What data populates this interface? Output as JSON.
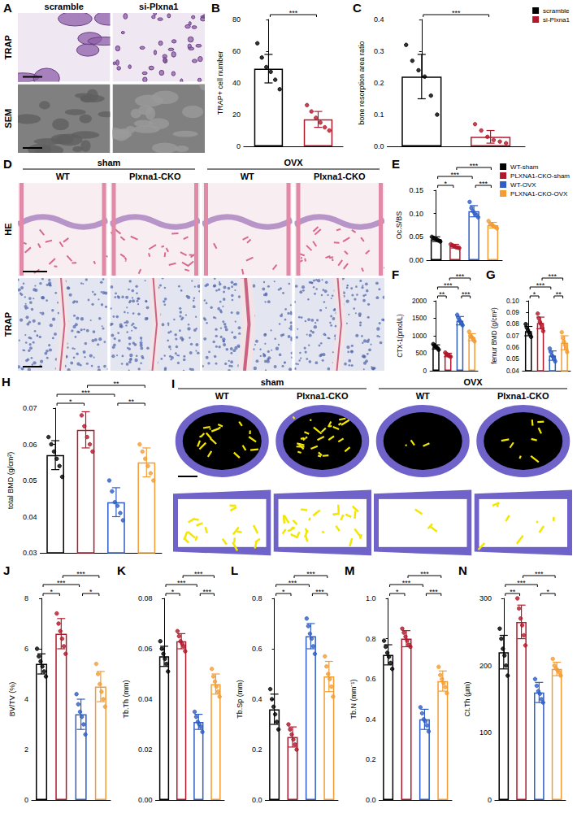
{
  "images": [
    {
      "panel": "A",
      "columns": [
        "scramble",
        "si-Plxna1"
      ],
      "rows": [
        "TRAP",
        "SEM"
      ]
    },
    {
      "panel": "D",
      "groups": [
        "sham",
        "OVX"
      ],
      "columns": [
        "WT",
        "Plxna1-CKO",
        "WT",
        "Plxna1-CKO"
      ],
      "rows": [
        "HE",
        "TRAP"
      ]
    },
    {
      "panel": "I",
      "groups": [
        "sham",
        "OVX"
      ],
      "columns": [
        "WT",
        "Plxna1-CKO",
        "WT",
        "Plxna1-CKO"
      ]
    }
  ],
  "chart_data": [
    {
      "panel": "B",
      "type": "bar",
      "categories": [
        "scramble",
        "si-Plxna1"
      ],
      "colors": [
        "#000000",
        "#b2182b"
      ],
      "values": [
        49,
        17
      ],
      "errors": [
        9,
        5
      ],
      "points": [
        [
          65,
          56,
          50,
          47,
          42,
          36
        ],
        [
          26,
          22,
          18,
          15,
          12,
          10
        ]
      ],
      "ylabel": "TRAP+ cell number",
      "ylim": [
        0,
        80
      ],
      "yticks": [
        0,
        20,
        40,
        60,
        80
      ],
      "significance": [
        {
          "from": 0,
          "to": 1,
          "label": "***"
        }
      ],
      "tick_labels": "y",
      "grid": false
    },
    {
      "panel": "C",
      "type": "bar",
      "categories": [
        "scramble",
        "si-Plxna1"
      ],
      "colors": [
        "#000000",
        "#b2182b"
      ],
      "values": [
        0.22,
        0.03
      ],
      "errors": [
        0.07,
        0.02
      ],
      "points": [
        [
          0.32,
          0.27,
          0.24,
          0.22,
          0.16,
          0.1
        ],
        [
          0.07,
          0.05,
          0.03,
          0.02,
          0.015,
          0.01
        ]
      ],
      "ylabel": "bone resorption area ratio",
      "ylim": [
        0,
        0.4
      ],
      "yticks": [
        {
          "value": 0,
          "label": "0.0"
        },
        0.1,
        0.2,
        0.3,
        0.4
      ],
      "significance": [
        {
          "from": 0,
          "to": 1,
          "label": "***"
        }
      ],
      "tick_labels": "y",
      "grid": false,
      "legend": "top-right"
    },
    {
      "panel": "E",
      "type": "bar",
      "categories": [
        "WT-sham",
        "PLXNA1-CKO-sham",
        "WT-OVX",
        "PLXNA1-CKO-OVX"
      ],
      "colors": [
        "#000000",
        "#b2182b",
        "#2f5ec4",
        "#f39c34"
      ],
      "values": [
        0.045,
        0.03,
        0.105,
        0.075
      ],
      "errors": [
        0.005,
        0.004,
        0.012,
        0.006
      ],
      "points": [
        [
          0.05,
          0.048,
          0.046,
          0.044,
          0.042,
          0.04
        ],
        [
          0.034,
          0.032,
          0.03,
          0.028,
          0.027,
          0.026
        ],
        [
          0.125,
          0.112,
          0.105,
          0.1,
          0.097,
          0.092
        ],
        [
          0.084,
          0.078,
          0.076,
          0.073,
          0.071,
          0.068
        ]
      ],
      "ylabel": "Oc.S/BS",
      "ylim": [
        0,
        0.15
      ],
      "yticks": [
        {
          "value": 0,
          "label": "0.00"
        },
        0.05,
        {
          "value": 0.1,
          "label": "0.10"
        },
        0.15
      ],
      "significance": [
        {
          "from": 0,
          "to": 1,
          "label": "*"
        },
        {
          "from": 2,
          "to": 3,
          "label": "***"
        },
        {
          "from": 0,
          "to": 2,
          "label": "***"
        },
        {
          "from": 1,
          "to": 3,
          "label": "***"
        }
      ],
      "tick_labels": "y",
      "grid": false,
      "legend": "top-right"
    },
    {
      "panel": "F",
      "type": "bar",
      "categories": [
        "WT-sham",
        "PLXNA1-CKO-sham",
        "WT-OVX",
        "PLXNA1-CKO-OVX"
      ],
      "colors": [
        "#000000",
        "#b2182b",
        "#2f5ec4",
        "#f39c34"
      ],
      "values": [
        680,
        450,
        1430,
        960
      ],
      "errors": [
        60,
        50,
        120,
        100
      ],
      "points": [
        [
          760,
          720,
          690,
          670,
          640,
          600
        ],
        [
          520,
          480,
          460,
          440,
          420,
          400
        ],
        [
          1600,
          1520,
          1450,
          1400,
          1350,
          1300
        ],
        [
          1120,
          1000,
          970,
          940,
          900,
          840
        ]
      ],
      "ylabel": "CTX-1(pmol/L)",
      "ylim": [
        0,
        2000
      ],
      "yticks": [
        0,
        500,
        1000,
        1500,
        2000
      ],
      "significance": [
        {
          "from": 0,
          "to": 1,
          "label": "**"
        },
        {
          "from": 2,
          "to": 3,
          "label": "***"
        },
        {
          "from": 0,
          "to": 2,
          "label": "***"
        },
        {
          "from": 1,
          "to": 3,
          "label": "***"
        }
      ],
      "tick_labels": "y",
      "grid": false
    },
    {
      "panel": "G",
      "type": "bar",
      "categories": [
        "WT-sham",
        "PLXNA1-CKO-sham",
        "WT-OVX",
        "PLXNA1-CKO-OVX"
      ],
      "colors": [
        "#000000",
        "#b2182b",
        "#2f5ec4",
        "#f39c34"
      ],
      "values": [
        0.074,
        0.081,
        0.053,
        0.064
      ],
      "errors": [
        0.004,
        0.005,
        0.004,
        0.006
      ],
      "points": [
        [
          0.08,
          0.077,
          0.075,
          0.073,
          0.071,
          0.069
        ],
        [
          0.089,
          0.085,
          0.082,
          0.08,
          0.077,
          0.074
        ],
        [
          0.059,
          0.056,
          0.053,
          0.052,
          0.05,
          0.048
        ],
        [
          0.073,
          0.068,
          0.065,
          0.062,
          0.059,
          0.056
        ]
      ],
      "ylabel": "femur BMD (g/cm²)",
      "ylim": [
        0.04,
        0.1
      ],
      "yticks": [
        0.04,
        0.05,
        0.06,
        0.07,
        0.08,
        0.09,
        {
          "value": 0.1,
          "label": "0.10"
        }
      ],
      "significance": [
        {
          "from": 0,
          "to": 1,
          "label": "*"
        },
        {
          "from": 2,
          "to": 3,
          "label": "**"
        },
        {
          "from": 0,
          "to": 2,
          "label": "***"
        },
        {
          "from": 1,
          "to": 3,
          "label": "***"
        }
      ],
      "tick_labels": "y",
      "grid": false
    },
    {
      "panel": "H",
      "type": "bar",
      "categories": [
        "WT-sham",
        "PLXNA1-CKO-sham",
        "WT-OVX",
        "PLXNA1-CKO-OVX"
      ],
      "colors": [
        "#000000",
        "#b2182b",
        "#2f5ec4",
        "#f39c34"
      ],
      "values": [
        0.057,
        0.064,
        0.044,
        0.055
      ],
      "errors": [
        0.004,
        0.005,
        0.004,
        0.004
      ],
      "points": [
        [
          0.062,
          0.06,
          0.058,
          0.056,
          0.054,
          0.051
        ],
        [
          0.071,
          0.068,
          0.065,
          0.062,
          0.06,
          0.058
        ],
        [
          0.05,
          0.047,
          0.044,
          0.043,
          0.041,
          0.039
        ],
        [
          0.06,
          0.058,
          0.056,
          0.054,
          0.052,
          0.05
        ]
      ],
      "ylabel": "total BMD (g/cm²)",
      "ylim": [
        0.03,
        0.07
      ],
      "yticks": [
        0.03,
        0.04,
        0.05,
        0.06,
        0.07
      ],
      "significance": [
        {
          "from": 0,
          "to": 1,
          "label": "*"
        },
        {
          "from": 2,
          "to": 3,
          "label": "**"
        },
        {
          "from": 0,
          "to": 2,
          "label": "***"
        },
        {
          "from": 1,
          "to": 3,
          "label": "**"
        }
      ],
      "tick_labels": "y",
      "grid": false
    },
    {
      "panel": "J",
      "type": "bar",
      "categories": [
        "WT-sham",
        "PLXNA1-CKO-sham",
        "WT-OVX",
        "PLXNA1-CKO-OVX"
      ],
      "colors": [
        "#000000",
        "#b2182b",
        "#2f5ec4",
        "#f39c34"
      ],
      "values": [
        5.4,
        6.6,
        3.4,
        4.5
      ],
      "errors": [
        0.4,
        0.6,
        0.6,
        0.6
      ],
      "points": [
        [
          6.0,
          5.7,
          5.5,
          5.3,
          5.1,
          4.9
        ],
        [
          7.4,
          7.0,
          6.7,
          6.4,
          6.1,
          5.8
        ],
        [
          4.2,
          3.8,
          3.5,
          3.3,
          3.0,
          2.6
        ],
        [
          5.4,
          5.0,
          4.6,
          4.3,
          4.0,
          3.7
        ]
      ],
      "ylabel": "BV/TV (%)",
      "ylim": [
        0,
        8
      ],
      "yticks": [
        0,
        2,
        4,
        6,
        8
      ],
      "significance": [
        {
          "from": 0,
          "to": 1,
          "label": "*"
        },
        {
          "from": 2,
          "to": 3,
          "label": "*"
        },
        {
          "from": 0,
          "to": 2,
          "label": "***"
        },
        {
          "from": 1,
          "to": 3,
          "label": "***"
        }
      ],
      "tick_labels": "y",
      "grid": false
    },
    {
      "panel": "K",
      "type": "bar",
      "categories": [
        "WT-sham",
        "PLXNA1-CKO-sham",
        "WT-OVX",
        "PLXNA1-CKO-OVX"
      ],
      "colors": [
        "#000000",
        "#b2182b",
        "#2f5ec4",
        "#f39c34"
      ],
      "values": [
        0.057,
        0.063,
        0.031,
        0.046
      ],
      "errors": [
        0.004,
        0.003,
        0.003,
        0.004
      ],
      "points": [
        [
          0.063,
          0.06,
          0.058,
          0.056,
          0.054,
          0.051
        ],
        [
          0.067,
          0.065,
          0.063,
          0.062,
          0.061,
          0.059
        ],
        [
          0.035,
          0.033,
          0.031,
          0.03,
          0.029,
          0.027
        ],
        [
          0.052,
          0.049,
          0.047,
          0.045,
          0.043,
          0.041
        ]
      ],
      "ylabel": "Tb.Th (mm)",
      "ylim": [
        0,
        0.08
      ],
      "yticks": [
        {
          "value": 0,
          "label": "0.00"
        },
        0.02,
        0.04,
        0.06,
        0.08
      ],
      "significance": [
        {
          "from": 0,
          "to": 1,
          "label": "*"
        },
        {
          "from": 2,
          "to": 3,
          "label": "***"
        },
        {
          "from": 0,
          "to": 2,
          "label": "***"
        },
        {
          "from": 1,
          "to": 3,
          "label": "***"
        }
      ],
      "tick_labels": "y",
      "grid": false
    },
    {
      "panel": "L",
      "type": "bar",
      "categories": [
        "WT-sham",
        "PLXNA1-CKO-sham",
        "WT-OVX",
        "PLXNA1-CKO-OVX"
      ],
      "colors": [
        "#000000",
        "#b2182b",
        "#2f5ec4",
        "#f39c34"
      ],
      "values": [
        0.36,
        0.25,
        0.65,
        0.49
      ],
      "errors": [
        0.06,
        0.04,
        0.05,
        0.06
      ],
      "points": [
        [
          0.44,
          0.4,
          0.37,
          0.34,
          0.31,
          0.28
        ],
        [
          0.3,
          0.28,
          0.26,
          0.24,
          0.22,
          0.2
        ],
        [
          0.72,
          0.69,
          0.66,
          0.64,
          0.61,
          0.58
        ],
        [
          0.57,
          0.53,
          0.5,
          0.48,
          0.45,
          0.41
        ]
      ],
      "ylabel": "Tb.Sp (mm)",
      "ylim": [
        0,
        0.8
      ],
      "yticks": [
        {
          "value": 0,
          "label": "0.0"
        },
        0.2,
        0.4,
        0.6,
        0.8
      ],
      "significance": [
        {
          "from": 0,
          "to": 1,
          "label": "*"
        },
        {
          "from": 2,
          "to": 3,
          "label": "***"
        },
        {
          "from": 0,
          "to": 2,
          "label": "***"
        },
        {
          "from": 1,
          "to": 3,
          "label": "***"
        }
      ],
      "tick_labels": "y",
      "grid": false
    },
    {
      "panel": "M",
      "type": "bar",
      "categories": [
        "WT-sham",
        "PLXNA1-CKO-sham",
        "WT-OVX",
        "PLXNA1-CKO-OVX"
      ],
      "colors": [
        "#000000",
        "#b2182b",
        "#2f5ec4",
        "#f39c34"
      ],
      "values": [
        0.72,
        0.8,
        0.4,
        0.59
      ],
      "errors": [
        0.05,
        0.04,
        0.05,
        0.05
      ],
      "points": [
        [
          0.79,
          0.76,
          0.73,
          0.71,
          0.68,
          0.65
        ],
        [
          0.85,
          0.83,
          0.81,
          0.79,
          0.77,
          0.76
        ],
        [
          0.46,
          0.43,
          0.4,
          0.39,
          0.37,
          0.34
        ],
        [
          0.66,
          0.62,
          0.6,
          0.58,
          0.56,
          0.53
        ]
      ],
      "ylabel": "Tb.N (mm⁻¹)",
      "ylim": [
        0,
        1
      ],
      "yticks": [
        {
          "value": 0,
          "label": "0.0"
        },
        0.2,
        0.4,
        0.6,
        0.8,
        {
          "value": 1,
          "label": "1.0"
        }
      ],
      "significance": [
        {
          "from": 0,
          "to": 1,
          "label": "*"
        },
        {
          "from": 2,
          "to": 3,
          "label": "***"
        },
        {
          "from": 0,
          "to": 2,
          "label": "***"
        },
        {
          "from": 1,
          "to": 3,
          "label": "***"
        }
      ],
      "tick_labels": "y",
      "grid": false
    },
    {
      "panel": "N",
      "type": "bar",
      "categories": [
        "WT-sham",
        "PLXNA1-CKO-sham",
        "WT-OVX",
        "PLXNA1-CKO-OVX"
      ],
      "colors": [
        "#000000",
        "#b2182b",
        "#2f5ec4",
        "#f39c34"
      ],
      "values": [
        220,
        265,
        160,
        195
      ],
      "errors": [
        25,
        25,
        15,
        10
      ],
      "points": [
        [
          255,
          240,
          225,
          215,
          200,
          185
        ],
        [
          300,
          285,
          270,
          260,
          245,
          230
        ],
        [
          180,
          170,
          162,
          158,
          150,
          145
        ],
        [
          210,
          200,
          196,
          193,
          190,
          185
        ]
      ],
      "ylabel": "Ct.Th (μm)",
      "ylim": [
        0,
        300
      ],
      "yticks": [
        0,
        100,
        200,
        300
      ],
      "significance": [
        {
          "from": 0,
          "to": 1,
          "label": "**"
        },
        {
          "from": 2,
          "to": 3,
          "label": "*"
        },
        {
          "from": 0,
          "to": 2,
          "label": "***"
        },
        {
          "from": 1,
          "to": 3,
          "label": "***"
        }
      ],
      "tick_labels": "y",
      "grid": false
    }
  ]
}
